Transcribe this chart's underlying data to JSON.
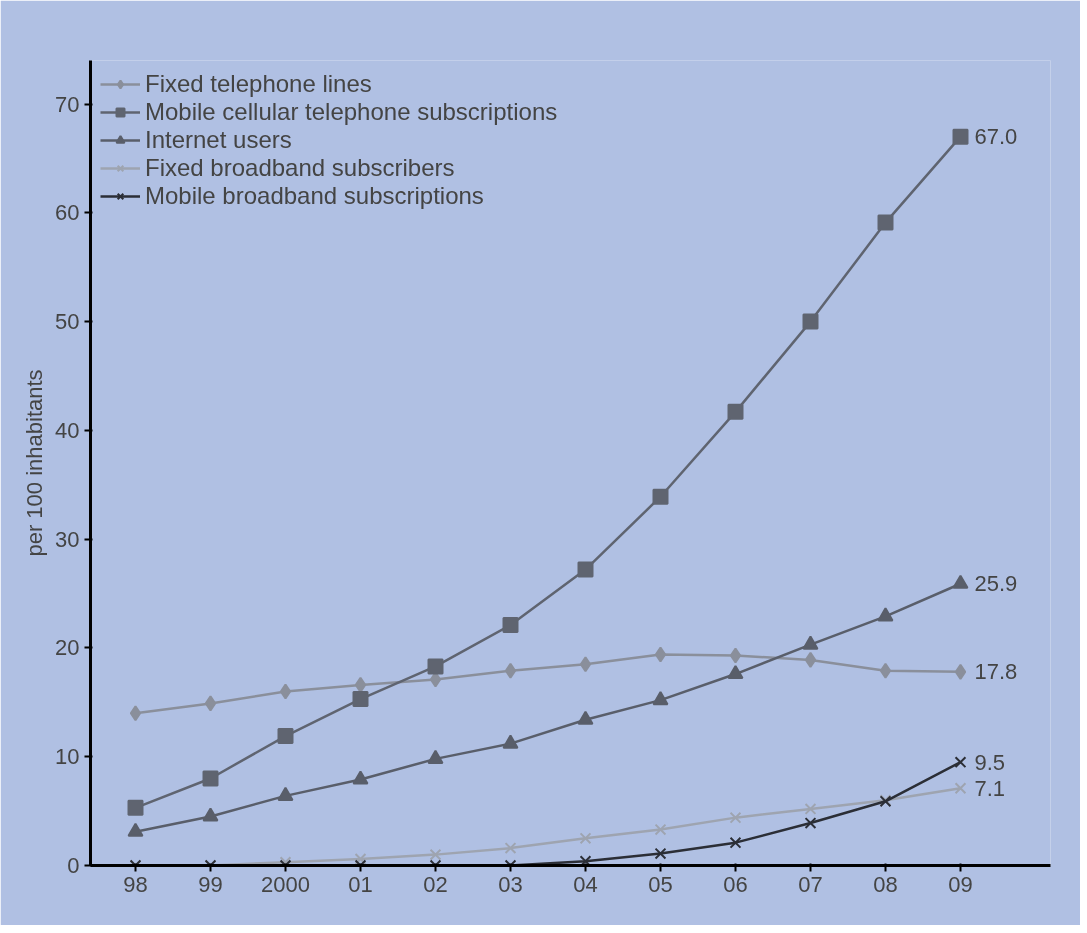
{
  "chart_data": {
    "type": "line",
    "ylabel": "per 100 inhabitants",
    "categories": [
      "98",
      "99",
      "2000",
      "01",
      "02",
      "03",
      "04",
      "05",
      "06",
      "07",
      "08",
      "09"
    ],
    "ylim": [
      0,
      74
    ],
    "yticks": [
      0,
      10,
      20,
      30,
      40,
      50,
      60,
      70
    ],
    "grid": false,
    "legend": "top left",
    "series": [
      {
        "name": "Fixed telephone lines",
        "color": "#8a8f9b",
        "marker": "diamond",
        "values": [
          14.0,
          14.9,
          16.0,
          16.6,
          17.1,
          17.9,
          18.5,
          19.4,
          19.3,
          18.9,
          17.9,
          17.8
        ],
        "value_labels": [
          null,
          null,
          null,
          null,
          null,
          null,
          null,
          null,
          null,
          null,
          null,
          "17.8"
        ]
      },
      {
        "name": "Mobile cellular telephone subscriptions",
        "color": "#5f6470",
        "marker": "square",
        "values": [
          5.3,
          8.0,
          11.9,
          15.3,
          18.3,
          22.1,
          27.2,
          33.9,
          41.7,
          50.0,
          59.1,
          67.0
        ],
        "value_labels": [
          null,
          null,
          null,
          null,
          null,
          null,
          null,
          null,
          null,
          null,
          null,
          "67.0"
        ]
      },
      {
        "name": "Internet users",
        "color": "#595e6a",
        "marker": "triangle",
        "values": [
          3.1,
          4.5,
          6.4,
          7.9,
          9.8,
          11.2,
          13.4,
          15.2,
          17.6,
          20.3,
          22.9,
          25.9
        ],
        "value_labels": [
          null,
          null,
          null,
          null,
          null,
          null,
          null,
          null,
          null,
          null,
          null,
          "25.9"
        ]
      },
      {
        "name": "Fixed broadband subscribers",
        "color": "#9ea4b0",
        "marker": "cross",
        "values": [
          0,
          0,
          0.3,
          0.6,
          1.0,
          1.6,
          2.5,
          3.3,
          4.4,
          5.2,
          6.0,
          7.1
        ],
        "value_labels": [
          null,
          null,
          null,
          null,
          null,
          null,
          null,
          null,
          null,
          null,
          null,
          "7.1"
        ]
      },
      {
        "name": "Mobile broadband subscriptions",
        "color": "#2b2e36",
        "marker": "cross",
        "values": [
          0,
          0,
          0,
          0,
          0,
          0,
          0.4,
          1.1,
          2.1,
          3.9,
          5.9,
          9.5
        ],
        "value_labels": [
          null,
          null,
          null,
          null,
          null,
          null,
          null,
          null,
          null,
          null,
          null,
          "9.5"
        ]
      }
    ]
  }
}
